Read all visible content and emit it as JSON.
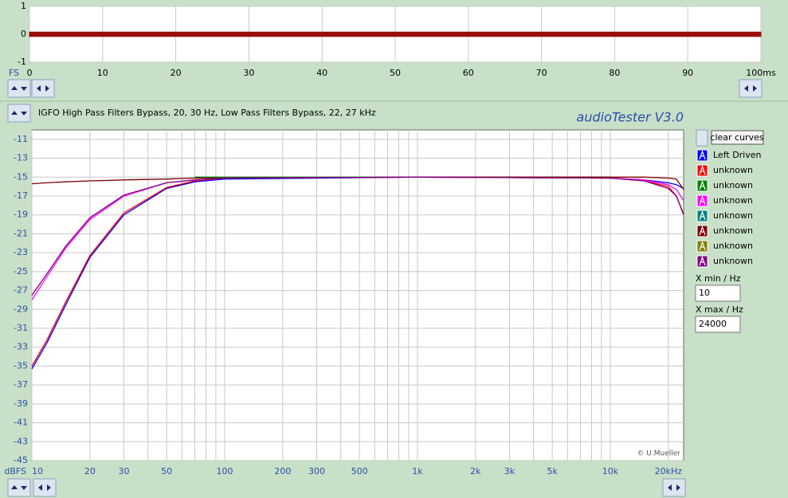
{
  "app": {
    "title": "audioTester  V3.0",
    "copyright": "© U.Mueller",
    "clear_button": "clear curves",
    "x_min_label": "X min / Hz",
    "x_min": "10",
    "x_max_label": "X max / Hz",
    "x_max": "24000"
  },
  "chart_data": [
    {
      "type": "area",
      "y_label": "FS",
      "x": [
        0,
        100
      ],
      "upper": [
        0.08,
        0.08
      ],
      "lower": [
        -0.08,
        -0.08
      ],
      "color": "#9a0c0c",
      "xlim": [
        0,
        100
      ],
      "xticks": [
        0,
        10,
        20,
        30,
        40,
        50,
        60,
        70,
        80,
        90,
        {
          "value": 100,
          "label": "100ms"
        }
      ],
      "ylim": [
        -1,
        1
      ],
      "yticks": [
        1,
        0,
        -1
      ],
      "grid": true
    },
    {
      "type": "line",
      "title": "IGFO High Pass Filters Bypass, 20, 30 Hz, Low Pass Filters Bypass, 22, 27 kHz",
      "y_label": "dBFS",
      "x_scale": "log",
      "grid": true,
      "x": [
        10,
        12,
        15,
        20,
        30,
        50,
        70,
        100,
        1000,
        10000,
        15000,
        20000,
        22000,
        24000
      ],
      "series": [
        {
          "name": "Left Driven",
          "color": "#0000ff",
          "values": [
            -35.3,
            -32.5,
            -28.5,
            -23.5,
            -19,
            -16.2,
            -15.5,
            -15.2,
            -15,
            -15.1,
            -15.3,
            -15.6,
            -15.8,
            -16.2
          ]
        },
        {
          "name": "unknown",
          "color": "#ff0000",
          "values": [
            -35,
            -32.2,
            -28.2,
            -23.3,
            -18.8,
            -16.1,
            -15.4,
            -15.1,
            -15,
            -15.1,
            -15.4,
            -16,
            -17,
            -18.9
          ]
        },
        {
          "name": "unknown",
          "color": "#008000",
          "values": [
            null,
            null,
            null,
            null,
            null,
            null,
            -15,
            -15,
            -15,
            -15,
            null,
            null,
            null,
            null
          ]
        },
        {
          "name": "unknown",
          "color": "#ff00ff",
          "values": [
            -28,
            -25.5,
            -22.5,
            -19.5,
            -17,
            -15.6,
            -15.3,
            -15.1,
            -15,
            -15.1,
            -15.3,
            -15.8,
            -16.3,
            -17.5
          ]
        },
        {
          "name": "unknown",
          "color": "#008080",
          "values": [
            null,
            null,
            null,
            null,
            null,
            null,
            null,
            null,
            null,
            null,
            null,
            null,
            null,
            null
          ]
        },
        {
          "name": "unknown",
          "color": "#800000",
          "values": [
            -15.7,
            -15.6,
            -15.5,
            -15.4,
            -15.3,
            -15.2,
            -15.1,
            -15.1,
            -15,
            -15,
            -15,
            -15.1,
            -15.2,
            -16.3
          ]
        },
        {
          "name": "unknown",
          "color": "#808000",
          "values": [
            null,
            null,
            null,
            null,
            null,
            null,
            null,
            null,
            null,
            null,
            null,
            null,
            null,
            null
          ]
        },
        {
          "name": "unknown",
          "color": "#800080",
          "values": [
            -27.5,
            -25.2,
            -22.3,
            -19.3,
            -16.9,
            -15.6,
            -15.3,
            -15.1,
            -15,
            -15.1,
            -15.4,
            -16.2,
            -17,
            -19
          ]
        }
      ],
      "xlim": [
        10,
        24000
      ],
      "ylim": [
        -45,
        -10
      ],
      "xticks": [
        10,
        20,
        30,
        50,
        100,
        200,
        300,
        500,
        {
          "value": 1000,
          "label": "1k"
        },
        {
          "value": 2000,
          "label": "2k"
        },
        {
          "value": 3000,
          "label": "3k"
        },
        {
          "value": 5000,
          "label": "5k"
        },
        {
          "value": 10000,
          "label": "10k"
        },
        {
          "value": 20000,
          "label": "20kHz"
        }
      ],
      "xgrid": [
        10,
        20,
        30,
        40,
        50,
        60,
        70,
        80,
        90,
        100,
        200,
        300,
        400,
        500,
        600,
        700,
        800,
        900,
        1000,
        2000,
        3000,
        4000,
        5000,
        6000,
        7000,
        8000,
        9000,
        10000,
        20000
      ],
      "yticks": [
        -11,
        -13,
        -15,
        -17,
        -19,
        -21,
        -23,
        -25,
        -27,
        -29,
        -31,
        -33,
        -35,
        -37,
        -39,
        -41,
        -43,
        -45
      ]
    }
  ]
}
